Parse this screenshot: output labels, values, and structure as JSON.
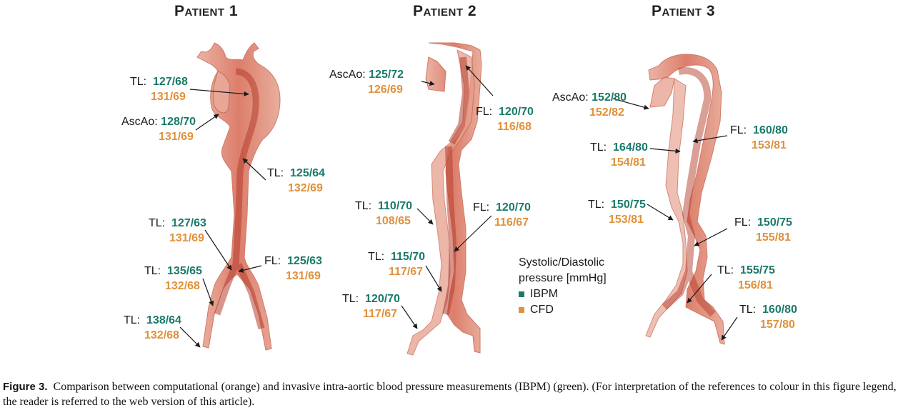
{
  "patients": [
    {
      "title": "Patient 1"
    },
    {
      "title": "Patient 2"
    },
    {
      "title": "Patient 3"
    }
  ],
  "labels": [
    {
      "name": "TL:",
      "ibpm": "127/68",
      "cfd": "131/69"
    },
    {
      "name": "AscAo:",
      "ibpm": "128/70",
      "cfd": "131/69"
    },
    {
      "name": "TL:",
      "ibpm": "125/64",
      "cfd": "132/69"
    },
    {
      "name": "TL:",
      "ibpm": "127/63",
      "cfd": "131/69"
    },
    {
      "name": "TL:",
      "ibpm": "135/65",
      "cfd": "132/68"
    },
    {
      "name": "FL:",
      "ibpm": "125/63",
      "cfd": "131/69"
    },
    {
      "name": "TL:",
      "ibpm": "138/64",
      "cfd": "132/68"
    },
    {
      "name": "AscAo:",
      "ibpm": "125/72",
      "cfd": "126/69"
    },
    {
      "name": "FL:",
      "ibpm": "120/70",
      "cfd": "116/68"
    },
    {
      "name": "TL:",
      "ibpm": "110/70",
      "cfd": "108/65"
    },
    {
      "name": "FL:",
      "ibpm": "120/70",
      "cfd": "116/67"
    },
    {
      "name": "TL:",
      "ibpm": "115/70",
      "cfd": "117/67"
    },
    {
      "name": "TL:",
      "ibpm": "120/70",
      "cfd": "117/67"
    },
    {
      "name": "AscAo:",
      "ibpm": "152/80",
      "cfd": "152/82"
    },
    {
      "name": "FL:",
      "ibpm": "160/80",
      "cfd": "153/81"
    },
    {
      "name": "TL:",
      "ibpm": "164/80",
      "cfd": "154/81"
    },
    {
      "name": "TL:",
      "ibpm": "150/75",
      "cfd": "153/81"
    },
    {
      "name": "FL:",
      "ibpm": "150/75",
      "cfd": "155/81"
    },
    {
      "name": "TL:",
      "ibpm": "155/75",
      "cfd": "156/81"
    },
    {
      "name": "TL:",
      "ibpm": "160/80",
      "cfd": "157/80"
    }
  ],
  "legend": {
    "line1": "Systolic/Diastolic",
    "line2": "pressure [mmHg]",
    "ibpm": "IBPM",
    "cfd": "CFD",
    "ibpm_color": "#1a7a6a",
    "cfd_color": "#e0913a"
  },
  "caption": {
    "label": "Figure 3.",
    "text": "Comparison between computational (orange) and invasive intra-aortic blood pressure measurements (IBPM) (green). (For interpretation of the references to colour in this figure legend, the reader is referred to the web version of this article)."
  }
}
